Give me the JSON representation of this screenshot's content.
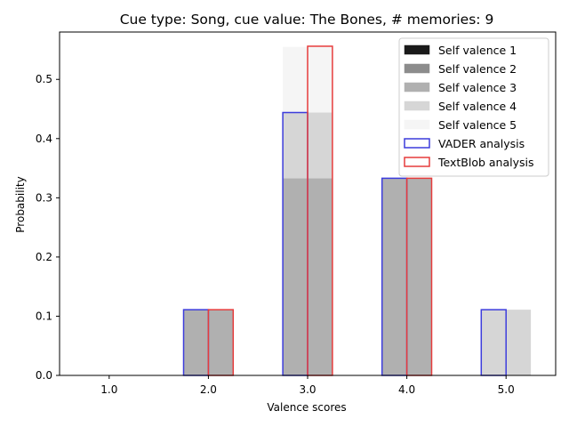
{
  "chart_data": {
    "type": "bar",
    "title": "Cue type: Song, cue value: The Bones, # memories: 9",
    "xlabel": "Valence scores",
    "ylabel": "Probability",
    "categories": [
      "1.0",
      "2.0",
      "3.0",
      "4.0",
      "5.0"
    ],
    "x_values": [
      1,
      2,
      3,
      4,
      5
    ],
    "xlim": [
      0.5,
      5.5
    ],
    "ylim": [
      0,
      0.58
    ],
    "yticks": [
      0.0,
      0.1,
      0.2,
      0.3,
      0.4,
      0.5
    ],
    "ytick_labels": [
      "0.0",
      "0.1",
      "0.2",
      "0.3",
      "0.4",
      "0.5"
    ],
    "grid": false,
    "legend_position": "top-right",
    "self_valence_series": [
      {
        "name": "Self valence 1",
        "color": "#1a1a1a",
        "values": [
          0,
          0,
          0,
          0,
          0
        ]
      },
      {
        "name": "Self valence 2",
        "color": "#8c8c8c",
        "values": [
          0,
          0,
          0,
          0,
          0
        ]
      },
      {
        "name": "Self valence 3",
        "color": "#b0b0b0",
        "values": [
          0,
          0.111,
          0.333,
          0.333,
          0
        ]
      },
      {
        "name": "Self valence 4",
        "color": "#d6d6d6",
        "values": [
          0,
          0,
          0.111,
          0,
          0.111
        ]
      },
      {
        "name": "Self valence 5",
        "color": "#f5f5f5",
        "values": [
          0,
          0,
          0.111,
          0,
          0
        ]
      }
    ],
    "analysis_series": [
      {
        "name": "VADER analysis",
        "edge_color": "#3c3cdc",
        "offset": -0.125,
        "values": [
          0,
          0.111,
          0.444,
          0.333,
          0.111
        ]
      },
      {
        "name": "TextBlob analysis",
        "edge_color": "#e63c3c",
        "offset": 0.125,
        "values": [
          0,
          0.111,
          0.556,
          0.333,
          0
        ]
      }
    ]
  }
}
